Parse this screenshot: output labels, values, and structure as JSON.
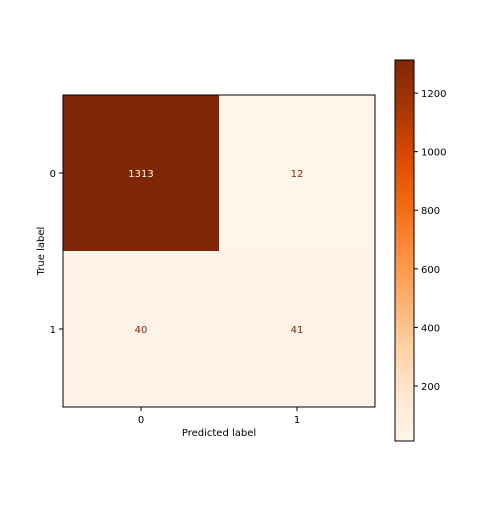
{
  "chart_data": {
    "type": "heatmap",
    "title": "",
    "xlabel": "Predicted label",
    "ylabel": "True label",
    "x_categories": [
      "0",
      "1"
    ],
    "y_categories": [
      "0",
      "1"
    ],
    "matrix": [
      [
        1313,
        12
      ],
      [
        40,
        41
      ]
    ],
    "cell_labels": [
      [
        "1313",
        "12"
      ],
      [
        "40",
        "41"
      ]
    ],
    "colormap": "Oranges",
    "color_range": [
      12,
      1313
    ],
    "colorbar_ticks": [
      200,
      400,
      600,
      800,
      1000,
      1200
    ],
    "colorbar_tick_labels": [
      "200",
      "400",
      "600",
      "800",
      "1000",
      "1200"
    ],
    "colors": {
      "low": "#fff5eb",
      "high": "#7f2704",
      "text_on_dark": "#fff5eb",
      "text_on_light": "#7f2704"
    }
  }
}
